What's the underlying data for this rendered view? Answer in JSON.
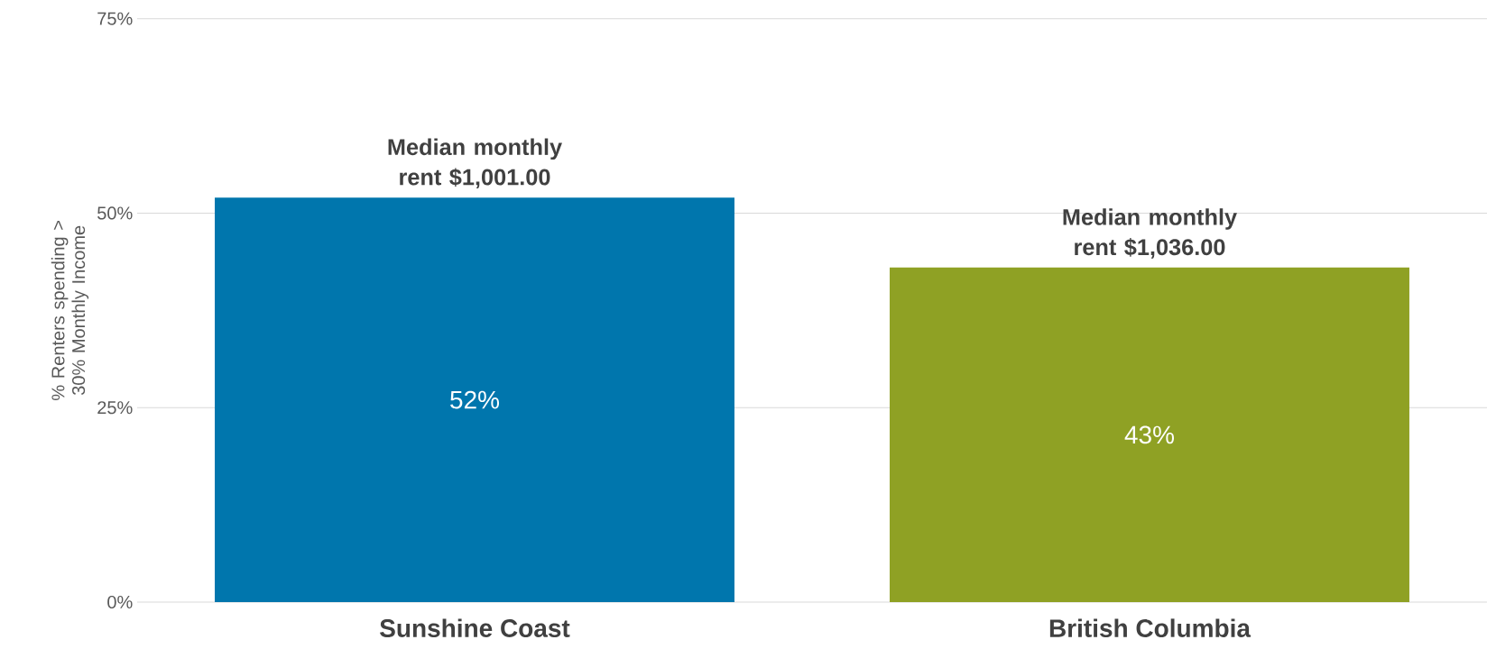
{
  "chart_data": {
    "type": "bar",
    "ylabel": "% Renters spending > 30% Monthly Income",
    "categories": [
      "Sunshine Coast",
      "British Columbia"
    ],
    "values": [
      52,
      43
    ],
    "colors": [
      "#0076ad",
      "#8fa124"
    ],
    "value_labels": [
      "52%",
      "43%"
    ],
    "annotations": [
      {
        "text": "Median monthly rent $1,001.00",
        "x": "Sunshine Coast",
        "y": 52
      },
      {
        "text": "Median monthly rent $1,036.00",
        "x": "British Columbia",
        "y": 43
      }
    ],
    "ylim": [
      0,
      75
    ],
    "yticks": [
      {
        "value": 0,
        "label": "0%"
      },
      {
        "value": 25,
        "label": "25%"
      },
      {
        "value": 50,
        "label": "50%"
      },
      {
        "value": 75,
        "label": "75%"
      }
    ],
    "grid": "y"
  }
}
